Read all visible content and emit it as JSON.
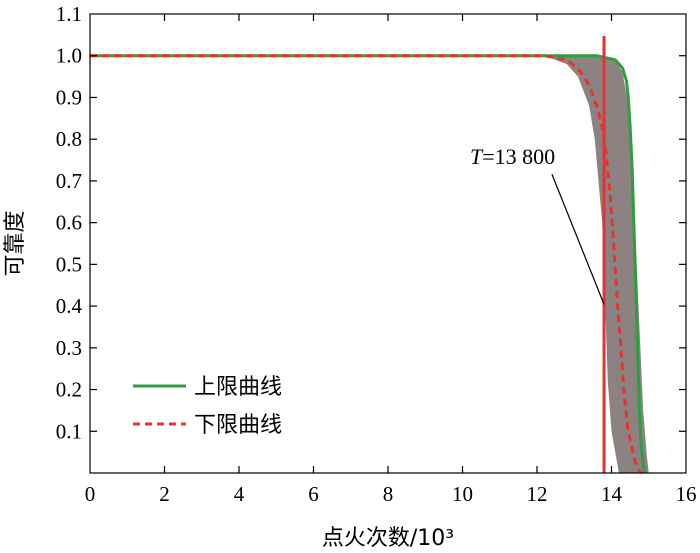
{
  "chart_data": {
    "type": "line",
    "title": "",
    "xlabel": "点火次数/10³",
    "ylabel": "可靠度",
    "xlim": [
      0,
      16
    ],
    "ylim": [
      0,
      1.1
    ],
    "x_ticks": [
      "0",
      "2",
      "4",
      "6",
      "8",
      "10",
      "12",
      "14",
      "16"
    ],
    "y_ticks": [
      "0.1",
      "0.2",
      "0.3",
      "0.4",
      "0.5",
      "0.6",
      "0.7",
      "0.8",
      "0.9",
      "1.0",
      "1.1"
    ],
    "grid": false,
    "legend_position": "bottom-left",
    "series": [
      {
        "name": "上限曲线",
        "color": "#2e9e3e",
        "style": "solid",
        "x": [
          0,
          12.3,
          13.0,
          13.6,
          14.1,
          14.3,
          14.4,
          14.45,
          14.5,
          14.55,
          14.6,
          14.65,
          14.7,
          14.75,
          14.8,
          14.85,
          14.9
        ],
        "y": [
          1.0,
          1.0,
          1.0,
          1.0,
          0.99,
          0.97,
          0.94,
          0.9,
          0.83,
          0.74,
          0.6,
          0.45,
          0.3,
          0.15,
          0.06,
          0.02,
          0.0
        ]
      },
      {
        "name": "下限曲线",
        "color": "#e8322d",
        "style": "dashed",
        "x": [
          0,
          12.2,
          12.8,
          13.1,
          13.4,
          13.6,
          13.75,
          13.85,
          13.95,
          14.05,
          14.15,
          14.25,
          14.35,
          14.45,
          14.6,
          14.7,
          14.8
        ],
        "y": [
          1.0,
          1.0,
          0.99,
          0.97,
          0.93,
          0.88,
          0.83,
          0.77,
          0.68,
          0.56,
          0.42,
          0.3,
          0.18,
          0.1,
          0.04,
          0.01,
          0.0
        ]
      }
    ],
    "band": {
      "color": "#8c8282",
      "upper_x": [
        12.3,
        13.2,
        13.8,
        14.1,
        14.3,
        14.45,
        14.55,
        14.65,
        14.75,
        14.85,
        14.95,
        15.0
      ],
      "upper_y": [
        1.0,
        1.0,
        1.0,
        0.99,
        0.96,
        0.88,
        0.75,
        0.55,
        0.35,
        0.15,
        0.04,
        0.0
      ],
      "lower_x": [
        12.2,
        12.8,
        13.1,
        13.4,
        13.55,
        13.65,
        13.75,
        13.8,
        13.85,
        13.9,
        14.0,
        14.2
      ],
      "lower_y": [
        1.0,
        0.98,
        0.95,
        0.88,
        0.8,
        0.7,
        0.6,
        0.48,
        0.35,
        0.22,
        0.1,
        0.0
      ]
    },
    "reference_line": {
      "x": 13.8,
      "color": "#e8322d",
      "label_italic": "T",
      "label_rest": "=13 800",
      "label_x": 10.2,
      "label_y": 0.74,
      "pointer_x": 13.8,
      "pointer_y": 0.5
    }
  }
}
